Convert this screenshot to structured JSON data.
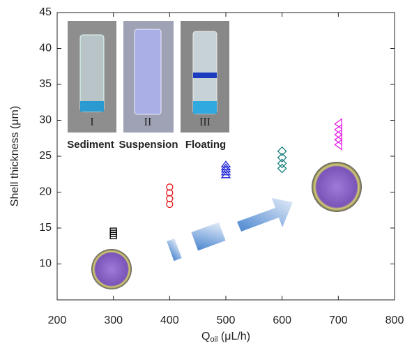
{
  "chart_data": {
    "type": "scatter",
    "y_label": "Shell thickness (μm)",
    "x_label": "Q",
    "x_label_sub": "oil",
    "x_label_rest": " (μL/h)",
    "xlim": [
      200,
      800
    ],
    "xticks": [
      200,
      300,
      400,
      500,
      600,
      700,
      800
    ],
    "ylim": [
      5,
      45
    ],
    "yticks": [
      10,
      15,
      20,
      25,
      30,
      35,
      40,
      45
    ],
    "series": [
      {
        "marker": "square",
        "color": "#000000",
        "x": [
          300,
          300,
          300,
          300
        ],
        "values": [
          13.8,
          14.1,
          14.4,
          14.7
        ]
      },
      {
        "marker": "circle",
        "color": "#e8161b",
        "x": [
          400,
          400,
          400,
          400
        ],
        "values": [
          20.7,
          19.9,
          19.1,
          18.3
        ]
      },
      {
        "marker": "triangle-up",
        "color": "#1f23d8",
        "x": [
          500,
          500,
          500,
          500,
          500
        ],
        "values": [
          23.8,
          23.4,
          23.1,
          22.7,
          22.3
        ]
      },
      {
        "marker": "diamond",
        "color": "#16807a",
        "x": [
          600,
          600,
          600,
          600
        ],
        "values": [
          25.7,
          24.8,
          24.0,
          23.3
        ]
      },
      {
        "marker": "triangle-left",
        "color": "#e81ee8",
        "x": [
          700,
          700,
          700,
          700,
          700
        ],
        "values": [
          29.5,
          28.7,
          28.0,
          27.3,
          26.6
        ]
      }
    ],
    "inset_labels": [
      "Sediment",
      "Suspension",
      "Floating"
    ],
    "inset_numerals": [
      "I",
      "II",
      "III"
    ]
  }
}
